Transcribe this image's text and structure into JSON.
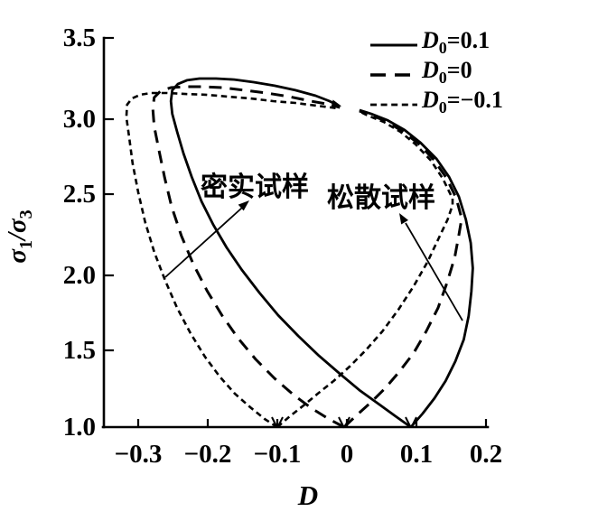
{
  "figure": {
    "background": "#ffffff",
    "ink": "#000000"
  },
  "axes": {
    "x": {
      "title": "D",
      "ticks": [
        "−0.3",
        "−0.2",
        "−0.1",
        "0",
        "0.1",
        "0.2"
      ]
    },
    "y": {
      "title_parts": {
        "sigma1": "σ",
        "sub1": "1",
        "slash": "/",
        "sigma3": "σ",
        "sub3": "3"
      },
      "ticks": [
        "3.5",
        "3.0",
        "2.5",
        "2.0",
        "1.5",
        "1.0"
      ]
    }
  },
  "legend": {
    "items": [
      {
        "style": "solid",
        "d": "D",
        "sub": "0",
        "value": "=0.1"
      },
      {
        "style": "longdash",
        "d": "D",
        "sub": "0",
        "value": "=0"
      },
      {
        "style": "shortdash",
        "d": "D",
        "sub": "0",
        "value": "=−0.1"
      }
    ]
  },
  "annotations": {
    "dense": "密实试样",
    "loose": "松散试样"
  },
  "chart_data": {
    "type": "line",
    "xlabel": "D",
    "ylabel": "σ1/σ3",
    "xlim": [
      -0.35,
      0.2
    ],
    "ylim": [
      1.0,
      3.5
    ],
    "x_ticks": [
      -0.3,
      -0.2,
      -0.1,
      0,
      0.1,
      0.2
    ],
    "y_ticks": [
      1.0,
      1.5,
      2.0,
      2.5,
      3.0,
      3.5
    ],
    "grid": false,
    "legend_position": "top-right",
    "annotations": [
      {
        "text": "密实试样",
        "meaning": "dense specimen",
        "arrow_from": [
          -0.261,
          1.965
        ],
        "arrow_to": [
          -0.14,
          2.459
        ]
      },
      {
        "text": "松散试样",
        "meaning": "loose specimen",
        "arrow_from": [
          0.166,
          1.686
        ],
        "arrow_to": [
          0.075,
          2.378
        ]
      }
    ],
    "series": [
      {
        "name": "D0=0.1 dense branch",
        "line": "solid",
        "points": [
          [
            0.092,
            1.0
          ],
          [
            0.07,
            1.07
          ],
          [
            0.045,
            1.151
          ],
          [
            0.018,
            1.238
          ],
          [
            -0.01,
            1.343
          ],
          [
            -0.04,
            1.459
          ],
          [
            -0.07,
            1.587
          ],
          [
            -0.099,
            1.721
          ],
          [
            -0.126,
            1.866
          ],
          [
            -0.151,
            2.012
          ],
          [
            -0.173,
            2.157
          ],
          [
            -0.192,
            2.302
          ],
          [
            -0.209,
            2.453
          ],
          [
            -0.223,
            2.61
          ],
          [
            -0.235,
            2.762
          ],
          [
            -0.244,
            2.901
          ],
          [
            -0.251,
            3.017
          ],
          [
            -0.253,
            3.099
          ],
          [
            -0.251,
            3.169
          ],
          [
            -0.243,
            3.209
          ],
          [
            -0.23,
            3.233
          ],
          [
            -0.212,
            3.244
          ],
          [
            -0.188,
            3.244
          ],
          [
            -0.162,
            3.238
          ],
          [
            -0.134,
            3.221
          ],
          [
            -0.104,
            3.198
          ],
          [
            -0.074,
            3.169
          ],
          [
            -0.045,
            3.134
          ],
          [
            -0.025,
            3.099
          ],
          [
            -0.012,
            3.07
          ]
        ]
      },
      {
        "name": "D0=0.1 loose branch",
        "line": "solid",
        "points": [
          [
            0.092,
            1.0
          ],
          [
            0.109,
            1.087
          ],
          [
            0.126,
            1.186
          ],
          [
            0.142,
            1.297
          ],
          [
            0.156,
            1.424
          ],
          [
            0.168,
            1.564
          ],
          [
            0.175,
            1.715
          ],
          [
            0.179,
            1.872
          ],
          [
            0.181,
            2.023
          ],
          [
            0.178,
            2.186
          ],
          [
            0.171,
            2.337
          ],
          [
            0.161,
            2.483
          ],
          [
            0.147,
            2.61
          ],
          [
            0.129,
            2.727
          ],
          [
            0.106,
            2.831
          ],
          [
            0.083,
            2.913
          ],
          [
            0.058,
            2.977
          ],
          [
            0.035,
            3.017
          ],
          [
            0.018,
            3.041
          ]
        ]
      },
      {
        "name": "D0=0 dense branch",
        "line": "longdash",
        "points": [
          [
            -0.004,
            1.0
          ],
          [
            -0.026,
            1.052
          ],
          [
            -0.051,
            1.122
          ],
          [
            -0.077,
            1.209
          ],
          [
            -0.104,
            1.314
          ],
          [
            -0.131,
            1.436
          ],
          [
            -0.156,
            1.57
          ],
          [
            -0.179,
            1.715
          ],
          [
            -0.201,
            1.878
          ],
          [
            -0.221,
            2.052
          ],
          [
            -0.238,
            2.233
          ],
          [
            -0.252,
            2.419
          ],
          [
            -0.262,
            2.605
          ],
          [
            -0.27,
            2.779
          ],
          [
            -0.277,
            2.936
          ],
          [
            -0.279,
            3.047
          ],
          [
            -0.277,
            3.122
          ],
          [
            -0.268,
            3.163
          ],
          [
            -0.253,
            3.186
          ],
          [
            -0.232,
            3.192
          ],
          [
            -0.208,
            3.192
          ],
          [
            -0.179,
            3.186
          ],
          [
            -0.148,
            3.169
          ],
          [
            -0.116,
            3.151
          ],
          [
            -0.083,
            3.128
          ],
          [
            -0.052,
            3.099
          ],
          [
            -0.029,
            3.081
          ],
          [
            -0.01,
            3.058
          ]
        ]
      },
      {
        "name": "D0=0 loose branch",
        "line": "longdash",
        "points": [
          [
            -0.004,
            1.0
          ],
          [
            0.014,
            1.076
          ],
          [
            0.034,
            1.157
          ],
          [
            0.055,
            1.25
          ],
          [
            0.075,
            1.355
          ],
          [
            0.096,
            1.477
          ],
          [
            0.114,
            1.616
          ],
          [
            0.131,
            1.767
          ],
          [
            0.144,
            1.93
          ],
          [
            0.155,
            2.093
          ],
          [
            0.161,
            2.238
          ],
          [
            0.165,
            2.343
          ],
          [
            0.157,
            2.477
          ],
          [
            0.143,
            2.605
          ],
          [
            0.125,
            2.721
          ],
          [
            0.103,
            2.826
          ],
          [
            0.079,
            2.907
          ],
          [
            0.056,
            2.971
          ],
          [
            0.032,
            3.012
          ],
          [
            0.018,
            3.035
          ]
        ]
      },
      {
        "name": "D0=−0.1 dense branch",
        "line": "shortdash",
        "points": [
          [
            -0.1,
            1.0
          ],
          [
            -0.118,
            1.052
          ],
          [
            -0.139,
            1.128
          ],
          [
            -0.161,
            1.215
          ],
          [
            -0.183,
            1.326
          ],
          [
            -0.204,
            1.453
          ],
          [
            -0.225,
            1.605
          ],
          [
            -0.244,
            1.767
          ],
          [
            -0.261,
            1.942
          ],
          [
            -0.277,
            2.128
          ],
          [
            -0.29,
            2.32
          ],
          [
            -0.3,
            2.512
          ],
          [
            -0.308,
            2.698
          ],
          [
            -0.313,
            2.866
          ],
          [
            -0.317,
            2.994
          ],
          [
            -0.316,
            3.076
          ],
          [
            -0.309,
            3.116
          ],
          [
            -0.297,
            3.14
          ],
          [
            -0.281,
            3.151
          ],
          [
            -0.258,
            3.151
          ],
          [
            -0.232,
            3.145
          ],
          [
            -0.203,
            3.14
          ],
          [
            -0.171,
            3.128
          ],
          [
            -0.139,
            3.116
          ],
          [
            -0.106,
            3.099
          ],
          [
            -0.074,
            3.087
          ],
          [
            -0.044,
            3.07
          ],
          [
            -0.023,
            3.058
          ],
          [
            -0.013,
            3.052
          ]
        ]
      },
      {
        "name": "D0=−0.1 loose branch",
        "line": "shortdash",
        "points": [
          [
            -0.1,
            1.0
          ],
          [
            -0.082,
            1.07
          ],
          [
            -0.062,
            1.14
          ],
          [
            -0.042,
            1.215
          ],
          [
            -0.019,
            1.297
          ],
          [
            0.004,
            1.39
          ],
          [
            0.027,
            1.494
          ],
          [
            0.051,
            1.616
          ],
          [
            0.074,
            1.756
          ],
          [
            0.096,
            1.907
          ],
          [
            0.116,
            2.064
          ],
          [
            0.132,
            2.215
          ],
          [
            0.145,
            2.337
          ],
          [
            0.152,
            2.43
          ],
          [
            0.152,
            2.471
          ],
          [
            0.138,
            2.599
          ],
          [
            0.121,
            2.715
          ],
          [
            0.099,
            2.82
          ],
          [
            0.077,
            2.901
          ],
          [
            0.053,
            2.965
          ],
          [
            0.03,
            3.006
          ],
          [
            0.017,
            3.035
          ]
        ]
      }
    ]
  }
}
